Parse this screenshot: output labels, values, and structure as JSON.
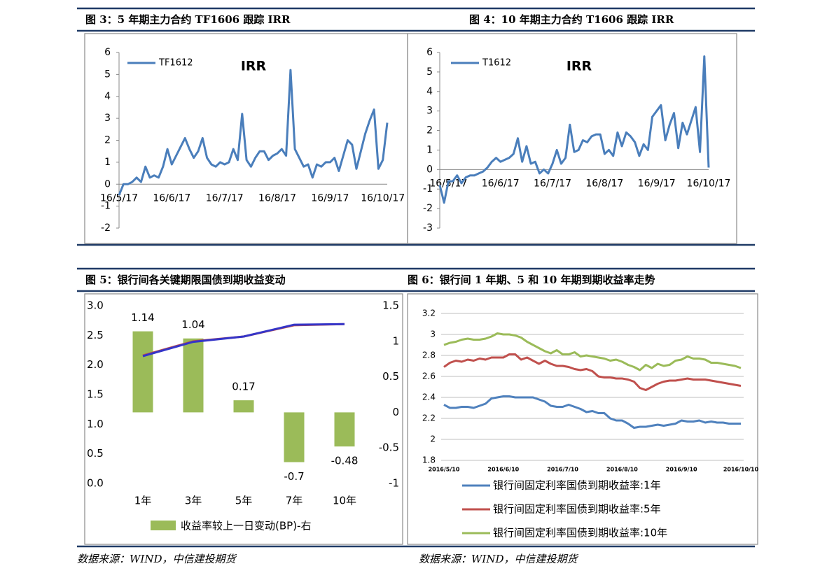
{
  "chart_data": [
    {
      "type": "line",
      "title": "图 3：5 年期主力合约 TF1606 跟踪 IRR",
      "annotation": "IRR",
      "legend": "upper left",
      "categories": [
        "16/5/17",
        null,
        null,
        null,
        null,
        null,
        null,
        null,
        null,
        null,
        null,
        null,
        "16/6/17",
        null,
        null,
        null,
        null,
        null,
        null,
        null,
        null,
        null,
        null,
        null,
        "16/7/17",
        null,
        null,
        null,
        null,
        null,
        null,
        null,
        null,
        null,
        null,
        null,
        "16/8/17",
        null,
        null,
        null,
        null,
        null,
        null,
        null,
        null,
        null,
        null,
        null,
        "16/9/17",
        null,
        null,
        null,
        null,
        null,
        null,
        null,
        null,
        null,
        null,
        null,
        "16/10/17",
        null
      ],
      "series": [
        {
          "name": "TF1612",
          "color": "#4a7ebb",
          "values": [
            -0.5,
            0.0,
            0.0,
            0.1,
            0.3,
            0.1,
            0.8,
            0.3,
            0.4,
            0.3,
            0.8,
            1.6,
            0.9,
            1.3,
            1.7,
            2.1,
            1.6,
            1.2,
            1.5,
            2.1,
            1.2,
            0.9,
            0.8,
            1.0,
            0.9,
            1.0,
            1.6,
            1.1,
            3.2,
            1.1,
            0.8,
            1.2,
            1.5,
            1.5,
            1.1,
            1.3,
            1.4,
            1.6,
            1.3,
            5.2,
            1.6,
            1.2,
            0.8,
            0.9,
            0.3,
            0.9,
            0.8,
            1.0,
            1.0,
            1.2,
            0.6,
            1.3,
            2.0,
            1.8,
            0.7,
            1.5,
            2.3,
            2.9,
            3.4,
            0.7,
            1.1,
            2.8
          ]
        }
      ],
      "ylim": [
        -2,
        6
      ],
      "yticks": [
        -2,
        -1,
        0,
        1,
        2,
        3,
        4,
        5,
        6
      ],
      "grid": false
    },
    {
      "type": "line",
      "title": "图 4：10 年期主力合约 T1606 跟踪 IRR",
      "annotation": "IRR",
      "legend": "upper left",
      "categories": [
        null,
        null,
        "16/5/17",
        null,
        null,
        null,
        null,
        null,
        null,
        null,
        null,
        null,
        null,
        null,
        "16/6/17",
        null,
        null,
        null,
        null,
        null,
        null,
        null,
        null,
        null,
        null,
        null,
        "16/7/17",
        null,
        null,
        null,
        null,
        null,
        null,
        null,
        null,
        null,
        null,
        null,
        "16/8/17",
        null,
        null,
        null,
        null,
        null,
        null,
        null,
        null,
        null,
        null,
        null,
        "16/9/17",
        null,
        null,
        null,
        null,
        null,
        null,
        null,
        null,
        null,
        null,
        null,
        "16/10/17"
      ],
      "series": [
        {
          "name": "T1612",
          "color": "#4a7ebb",
          "values": [
            -0.8,
            -1.7,
            -0.6,
            -0.6,
            -0.3,
            -0.7,
            -0.4,
            -0.3,
            -0.3,
            -0.2,
            -0.1,
            0.1,
            0.4,
            0.6,
            0.4,
            0.5,
            0.6,
            0.8,
            1.6,
            0.4,
            1.2,
            0.3,
            0.4,
            -0.2,
            0.0,
            -0.2,
            0.3,
            1.0,
            0.3,
            0.6,
            2.3,
            0.9,
            1.0,
            1.5,
            1.4,
            1.7,
            1.8,
            1.8,
            0.8,
            1.0,
            0.7,
            1.9,
            1.2,
            1.9,
            1.7,
            1.4,
            0.7,
            1.3,
            1.0,
            2.7,
            3.0,
            3.3,
            1.5,
            2.3,
            2.9,
            1.1,
            2.4,
            1.8,
            2.5,
            3.2,
            0.9,
            5.8,
            0.1
          ]
        }
      ],
      "ylim": [
        -3,
        6
      ],
      "yticks": [
        -3,
        -2,
        -1,
        0,
        1,
        2,
        3,
        4,
        5,
        6
      ],
      "grid": false
    },
    {
      "type": "bar",
      "title": "图 5：银行间各关键期限国债到期收益变动",
      "source": "数据来源：WIND，中信建投期货",
      "legend": "bottom",
      "categories": [
        "1年",
        "3年",
        "5年",
        "7年",
        "10年"
      ],
      "series": [
        {
          "name": "收益率较上一日变动(BP)-右",
          "type": "bar",
          "axis": "y2",
          "color": "#9bbb59",
          "values": [
            1.14,
            1.04,
            0.17,
            -0.7,
            -0.48
          ]
        },
        {
          "type": "line",
          "color": "#c0504d",
          "values": [
            2.16,
            2.4,
            2.48,
            2.67,
            2.69
          ]
        },
        {
          "type": "line",
          "color": "#3535c8",
          "values": [
            2.15,
            2.39,
            2.48,
            2.68,
            2.69
          ]
        }
      ],
      "ylim": [
        0,
        3
      ],
      "yticks": [
        {
          "value": 0,
          "label": "0.0"
        },
        0.5,
        {
          "value": 1,
          "label": "1.0"
        },
        1.5,
        {
          "value": 2,
          "label": "2.0"
        },
        2.5,
        {
          "value": 3,
          "label": "3.0"
        }
      ],
      "y2lim": [
        -1,
        1.5
      ],
      "y2ticks": [
        -1,
        -0.5,
        0,
        0.5,
        1,
        1.5
      ],
      "grid": false
    },
    {
      "type": "line",
      "title": "图 6：银行间 1 年期、5 和 10 年期到期收益率走势",
      "source": "数据来源：WIND，中信建投期货",
      "legend": "bottom",
      "categories": [
        "2016/5/10",
        null,
        null,
        null,
        null,
        null,
        null,
        null,
        null,
        null,
        "2016/6/10",
        null,
        null,
        null,
        null,
        null,
        null,
        null,
        null,
        null,
        "2016/7/10",
        null,
        null,
        null,
        null,
        null,
        null,
        null,
        null,
        null,
        "2016/8/10",
        null,
        null,
        null,
        null,
        null,
        null,
        null,
        null,
        null,
        "2016/9/10",
        null,
        null,
        null,
        null,
        null,
        null,
        null,
        null,
        null,
        "2016/10/10"
      ],
      "series": [
        {
          "name": "银行间固定利率国债到期收益率:1年",
          "color": "#4f81bd",
          "values": [
            2.33,
            2.3,
            2.3,
            2.31,
            2.31,
            2.3,
            2.32,
            2.34,
            2.39,
            2.4,
            2.41,
            2.41,
            2.4,
            2.4,
            2.4,
            2.4,
            2.38,
            2.36,
            2.32,
            2.31,
            2.31,
            2.33,
            2.31,
            2.29,
            2.26,
            2.27,
            2.25,
            2.25,
            2.2,
            2.18,
            2.18,
            2.15,
            2.11,
            2.12,
            2.12,
            2.13,
            2.14,
            2.13,
            2.14,
            2.15,
            2.18,
            2.17,
            2.17,
            2.18,
            2.16,
            2.17,
            2.16,
            2.16,
            2.15,
            2.15,
            2.15
          ]
        },
        {
          "name": "银行间固定利率国债到期收益率:5年",
          "color": "#c0504d",
          "values": [
            2.69,
            2.73,
            2.75,
            2.74,
            2.76,
            2.75,
            2.77,
            2.76,
            2.78,
            2.78,
            2.78,
            2.81,
            2.81,
            2.76,
            2.78,
            2.75,
            2.72,
            2.75,
            2.72,
            2.7,
            2.7,
            2.69,
            2.67,
            2.66,
            2.67,
            2.65,
            2.6,
            2.59,
            2.59,
            2.58,
            2.58,
            2.57,
            2.55,
            2.49,
            2.47,
            2.5,
            2.53,
            2.55,
            2.56,
            2.56,
            2.57,
            2.58,
            2.57,
            2.57,
            2.57,
            2.56,
            2.55,
            2.54,
            2.53,
            2.52,
            2.51
          ]
        },
        {
          "name": "银行间固定利率国债到期收益率:10年",
          "color": "#9bbb59",
          "values": [
            2.9,
            2.92,
            2.93,
            2.95,
            2.96,
            2.95,
            2.95,
            2.96,
            2.98,
            3.01,
            3.0,
            3.0,
            2.99,
            2.97,
            2.93,
            2.9,
            2.87,
            2.84,
            2.82,
            2.85,
            2.81,
            2.81,
            2.83,
            2.79,
            2.8,
            2.79,
            2.78,
            2.77,
            2.75,
            2.76,
            2.74,
            2.71,
            2.69,
            2.66,
            2.71,
            2.68,
            2.72,
            2.7,
            2.71,
            2.75,
            2.76,
            2.79,
            2.77,
            2.77,
            2.76,
            2.73,
            2.73,
            2.72,
            2.71,
            2.7,
            2.68
          ]
        }
      ],
      "ylim": [
        1.8,
        3.2
      ],
      "yticks": [
        1.8,
        2,
        2.2,
        2.4,
        2.6,
        2.8,
        3,
        3.2
      ],
      "grid": true
    }
  ]
}
